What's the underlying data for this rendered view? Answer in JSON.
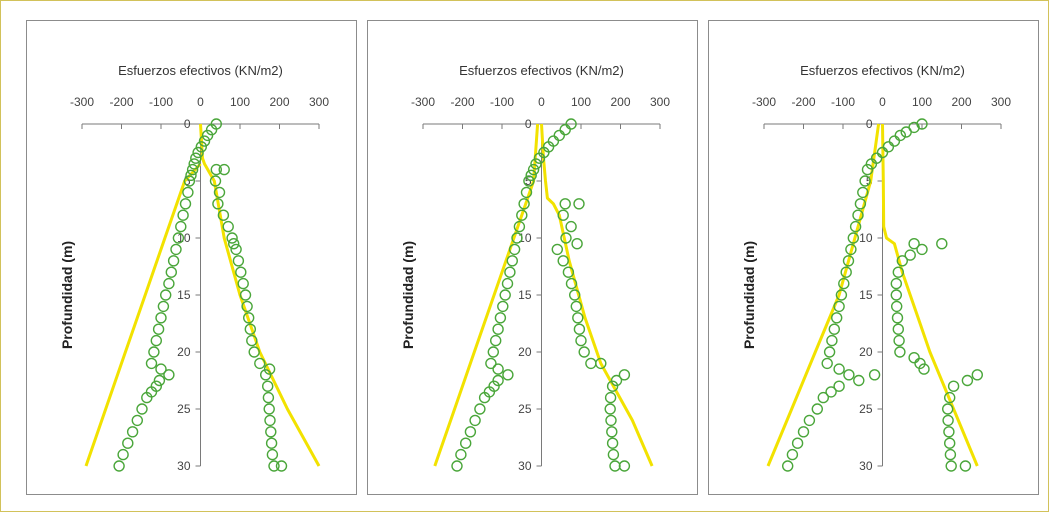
{
  "chart_data": [
    {
      "type": "scatter",
      "title": "Esfuerzos efectivos (KN/m2)",
      "xlabel": "Esfuerzos efectivos (KN/m2)",
      "ylabel": "Profundidad (m)",
      "xticks": [
        -300,
        -200,
        -100,
        0,
        100,
        200,
        300
      ],
      "yticks": [
        0,
        5,
        10,
        15,
        20,
        25,
        30
      ],
      "xlim": [
        -300,
        300
      ],
      "ylim": [
        0,
        30
      ],
      "y_inverted": true,
      "x_axis_position": "top",
      "line_color": "#f2e200",
      "marker_color": "#4aa63a",
      "lines": [
        [
          [
            0,
            0
          ],
          [
            5,
            3
          ],
          [
            10,
            3.5
          ],
          [
            35,
            5
          ],
          [
            60,
            10
          ],
          [
            100,
            15
          ],
          [
            150,
            20
          ],
          [
            220,
            25
          ],
          [
            300,
            30
          ]
        ],
        [
          [
            0,
            3.5
          ],
          [
            -40,
            5
          ],
          [
            -90,
            10
          ],
          [
            -140,
            15
          ],
          [
            -190,
            20
          ],
          [
            -240,
            25
          ],
          [
            -290,
            30
          ]
        ]
      ],
      "points": [
        [
          40,
          0
        ],
        [
          28,
          0.5
        ],
        [
          18,
          1
        ],
        [
          10,
          1.5
        ],
        [
          2,
          2
        ],
        [
          -6,
          2.5
        ],
        [
          -12,
          3
        ],
        [
          -16,
          3.5
        ],
        [
          -20,
          4
        ],
        [
          -24,
          4.5
        ],
        [
          -28,
          5
        ],
        [
          -32,
          6
        ],
        [
          -38,
          7
        ],
        [
          -44,
          8
        ],
        [
          -50,
          9
        ],
        [
          -56,
          10
        ],
        [
          -62,
          11
        ],
        [
          -68,
          12
        ],
        [
          -74,
          13
        ],
        [
          -80,
          14
        ],
        [
          -88,
          15
        ],
        [
          -94,
          16
        ],
        [
          -100,
          17
        ],
        [
          -106,
          18
        ],
        [
          -112,
          19
        ],
        [
          -118,
          20
        ],
        [
          -124,
          21
        ],
        [
          -100,
          21.5
        ],
        [
          -80,
          22
        ],
        [
          -104,
          22.5
        ],
        [
          -112,
          23
        ],
        [
          -124,
          23.5
        ],
        [
          -136,
          24
        ],
        [
          -148,
          25
        ],
        [
          -160,
          26
        ],
        [
          -172,
          27
        ],
        [
          -184,
          28
        ],
        [
          -196,
          29
        ],
        [
          -206,
          30
        ],
        [
          40,
          4
        ],
        [
          60,
          4
        ],
        [
          38,
          5
        ],
        [
          48,
          6
        ],
        [
          44,
          7
        ],
        [
          58,
          8
        ],
        [
          70,
          9
        ],
        [
          80,
          10
        ],
        [
          84,
          10.5
        ],
        [
          90,
          11
        ],
        [
          96,
          12
        ],
        [
          102,
          13
        ],
        [
          108,
          14
        ],
        [
          114,
          15
        ],
        [
          118,
          16
        ],
        [
          122,
          17
        ],
        [
          126,
          18
        ],
        [
          130,
          19
        ],
        [
          136,
          20
        ],
        [
          150,
          21
        ],
        [
          175,
          21.5
        ],
        [
          165,
          22
        ],
        [
          170,
          23
        ],
        [
          172,
          24
        ],
        [
          174,
          25
        ],
        [
          176,
          26
        ],
        [
          178,
          27
        ],
        [
          180,
          28
        ],
        [
          182,
          29
        ],
        [
          186,
          30
        ],
        [
          205,
          30
        ]
      ]
    },
    {
      "type": "scatter",
      "title": "Esfuerzos efectivos (KN/m2)",
      "xlabel": "Esfuerzos efectivos (KN/m2)",
      "ylabel": "Profundidad (m)",
      "xticks": [
        -300,
        -200,
        -100,
        0,
        100,
        200,
        300
      ],
      "yticks": [
        0,
        5,
        10,
        15,
        20,
        25,
        30
      ],
      "xlim": [
        -300,
        300
      ],
      "ylim": [
        0,
        30
      ],
      "y_inverted": true,
      "x_axis_position": "top",
      "line_color": "#f2e200",
      "marker_color": "#4aa63a",
      "lines": [
        [
          [
            0,
            0
          ],
          [
            5,
            3
          ],
          [
            10,
            5
          ],
          [
            15,
            6.5
          ],
          [
            30,
            7
          ],
          [
            45,
            8
          ],
          [
            70,
            12
          ],
          [
            110,
            17
          ],
          [
            150,
            21
          ],
          [
            230,
            26
          ],
          [
            280,
            30
          ]
        ],
        [
          [
            -10,
            0
          ],
          [
            -20,
            5
          ],
          [
            -70,
            10
          ],
          [
            -120,
            15
          ],
          [
            -170,
            20
          ],
          [
            -220,
            25
          ],
          [
            -270,
            30
          ]
        ]
      ],
      "points": [
        [
          75,
          0
        ],
        [
          60,
          0.5
        ],
        [
          45,
          1
        ],
        [
          30,
          1.5
        ],
        [
          18,
          2
        ],
        [
          6,
          2.5
        ],
        [
          -5,
          3
        ],
        [
          -14,
          3.5
        ],
        [
          -20,
          4
        ],
        [
          -26,
          4.5
        ],
        [
          -32,
          5
        ],
        [
          -38,
          6
        ],
        [
          -44,
          7
        ],
        [
          -50,
          8
        ],
        [
          -56,
          9
        ],
        [
          -62,
          10
        ],
        [
          -68,
          11
        ],
        [
          -74,
          12
        ],
        [
          -80,
          13
        ],
        [
          -86,
          14
        ],
        [
          -92,
          15
        ],
        [
          -98,
          16
        ],
        [
          -104,
          17
        ],
        [
          -110,
          18
        ],
        [
          -116,
          19
        ],
        [
          -122,
          20
        ],
        [
          -128,
          21
        ],
        [
          -110,
          21.5
        ],
        [
          -85,
          22
        ],
        [
          -110,
          22.5
        ],
        [
          -120,
          23
        ],
        [
          -132,
          23.5
        ],
        [
          -144,
          24
        ],
        [
          -156,
          25
        ],
        [
          -168,
          26
        ],
        [
          -180,
          27
        ],
        [
          -192,
          28
        ],
        [
          -204,
          29
        ],
        [
          -214,
          30
        ],
        [
          60,
          7
        ],
        [
          95,
          7
        ],
        [
          55,
          8
        ],
        [
          75,
          9
        ],
        [
          62,
          10
        ],
        [
          90,
          10.5
        ],
        [
          40,
          11
        ],
        [
          55,
          12
        ],
        [
          68,
          13
        ],
        [
          76,
          14
        ],
        [
          84,
          15
        ],
        [
          88,
          16
        ],
        [
          92,
          17
        ],
        [
          96,
          18
        ],
        [
          100,
          19
        ],
        [
          108,
          20
        ],
        [
          125,
          21
        ],
        [
          150,
          21
        ],
        [
          210,
          22
        ],
        [
          190,
          22.5
        ],
        [
          180,
          23
        ],
        [
          175,
          24
        ],
        [
          174,
          25
        ],
        [
          176,
          26
        ],
        [
          178,
          27
        ],
        [
          180,
          28
        ],
        [
          182,
          29
        ],
        [
          186,
          30
        ],
        [
          210,
          30
        ]
      ]
    },
    {
      "type": "scatter",
      "title": "Esfuerzos efectivos (KN/m2)",
      "xlabel": "Esfuerzos efectivos (KN/m2)",
      "ylabel": "Profundidad (m)",
      "xticks": [
        -300,
        -200,
        -100,
        0,
        100,
        200,
        300
      ],
      "yticks": [
        0,
        5,
        10,
        15,
        20,
        25,
        30
      ],
      "xlim": [
        -300,
        300
      ],
      "ylim": [
        0,
        30
      ],
      "y_inverted": true,
      "x_axis_position": "top",
      "line_color": "#f2e200",
      "marker_color": "#4aa63a",
      "lines": [
        [
          [
            0,
            0
          ],
          [
            2,
            5
          ],
          [
            3,
            9
          ],
          [
            10,
            10
          ],
          [
            30,
            10.5
          ],
          [
            50,
            13
          ],
          [
            90,
            17
          ],
          [
            120,
            20
          ],
          [
            180,
            25
          ],
          [
            240,
            30
          ]
        ],
        [
          [
            -10,
            0
          ],
          [
            -30,
            5
          ],
          [
            -70,
            10
          ],
          [
            -110,
            15
          ],
          [
            -170,
            20
          ],
          [
            -230,
            25
          ],
          [
            -290,
            30
          ]
        ]
      ],
      "points": [
        [
          100,
          0
        ],
        [
          80,
          0.3
        ],
        [
          60,
          0.7
        ],
        [
          45,
          1
        ],
        [
          30,
          1.5
        ],
        [
          15,
          2
        ],
        [
          0,
          2.5
        ],
        [
          -15,
          3
        ],
        [
          -28,
          3.5
        ],
        [
          -38,
          4
        ],
        [
          -44,
          5
        ],
        [
          -50,
          6
        ],
        [
          -56,
          7
        ],
        [
          -62,
          8
        ],
        [
          -68,
          9
        ],
        [
          -74,
          10
        ],
        [
          -80,
          11
        ],
        [
          -86,
          12
        ],
        [
          -92,
          13
        ],
        [
          -98,
          14
        ],
        [
          -104,
          15
        ],
        [
          -110,
          16
        ],
        [
          -116,
          17
        ],
        [
          -122,
          18
        ],
        [
          -128,
          19
        ],
        [
          -134,
          20
        ],
        [
          -140,
          21
        ],
        [
          -110,
          21.5
        ],
        [
          -85,
          22
        ],
        [
          -20,
          22
        ],
        [
          -60,
          22.5
        ],
        [
          -110,
          23
        ],
        [
          -130,
          23.5
        ],
        [
          -150,
          24
        ],
        [
          -165,
          25
        ],
        [
          -185,
          26
        ],
        [
          -200,
          27
        ],
        [
          -215,
          28
        ],
        [
          -228,
          29
        ],
        [
          -240,
          30
        ],
        [
          150,
          10.5
        ],
        [
          80,
          10.5
        ],
        [
          100,
          11
        ],
        [
          70,
          11.5
        ],
        [
          50,
          12
        ],
        [
          40,
          13
        ],
        [
          35,
          14
        ],
        [
          35,
          15
        ],
        [
          36,
          16
        ],
        [
          38,
          17
        ],
        [
          40,
          18
        ],
        [
          42,
          19
        ],
        [
          44,
          20
        ],
        [
          80,
          20.5
        ],
        [
          95,
          21
        ],
        [
          105,
          21.5
        ],
        [
          240,
          22
        ],
        [
          215,
          22.5
        ],
        [
          180,
          23
        ],
        [
          170,
          24
        ],
        [
          165,
          25
        ],
        [
          166,
          26
        ],
        [
          168,
          27
        ],
        [
          170,
          28
        ],
        [
          172,
          29
        ],
        [
          174,
          30
        ],
        [
          210,
          30
        ]
      ]
    }
  ]
}
